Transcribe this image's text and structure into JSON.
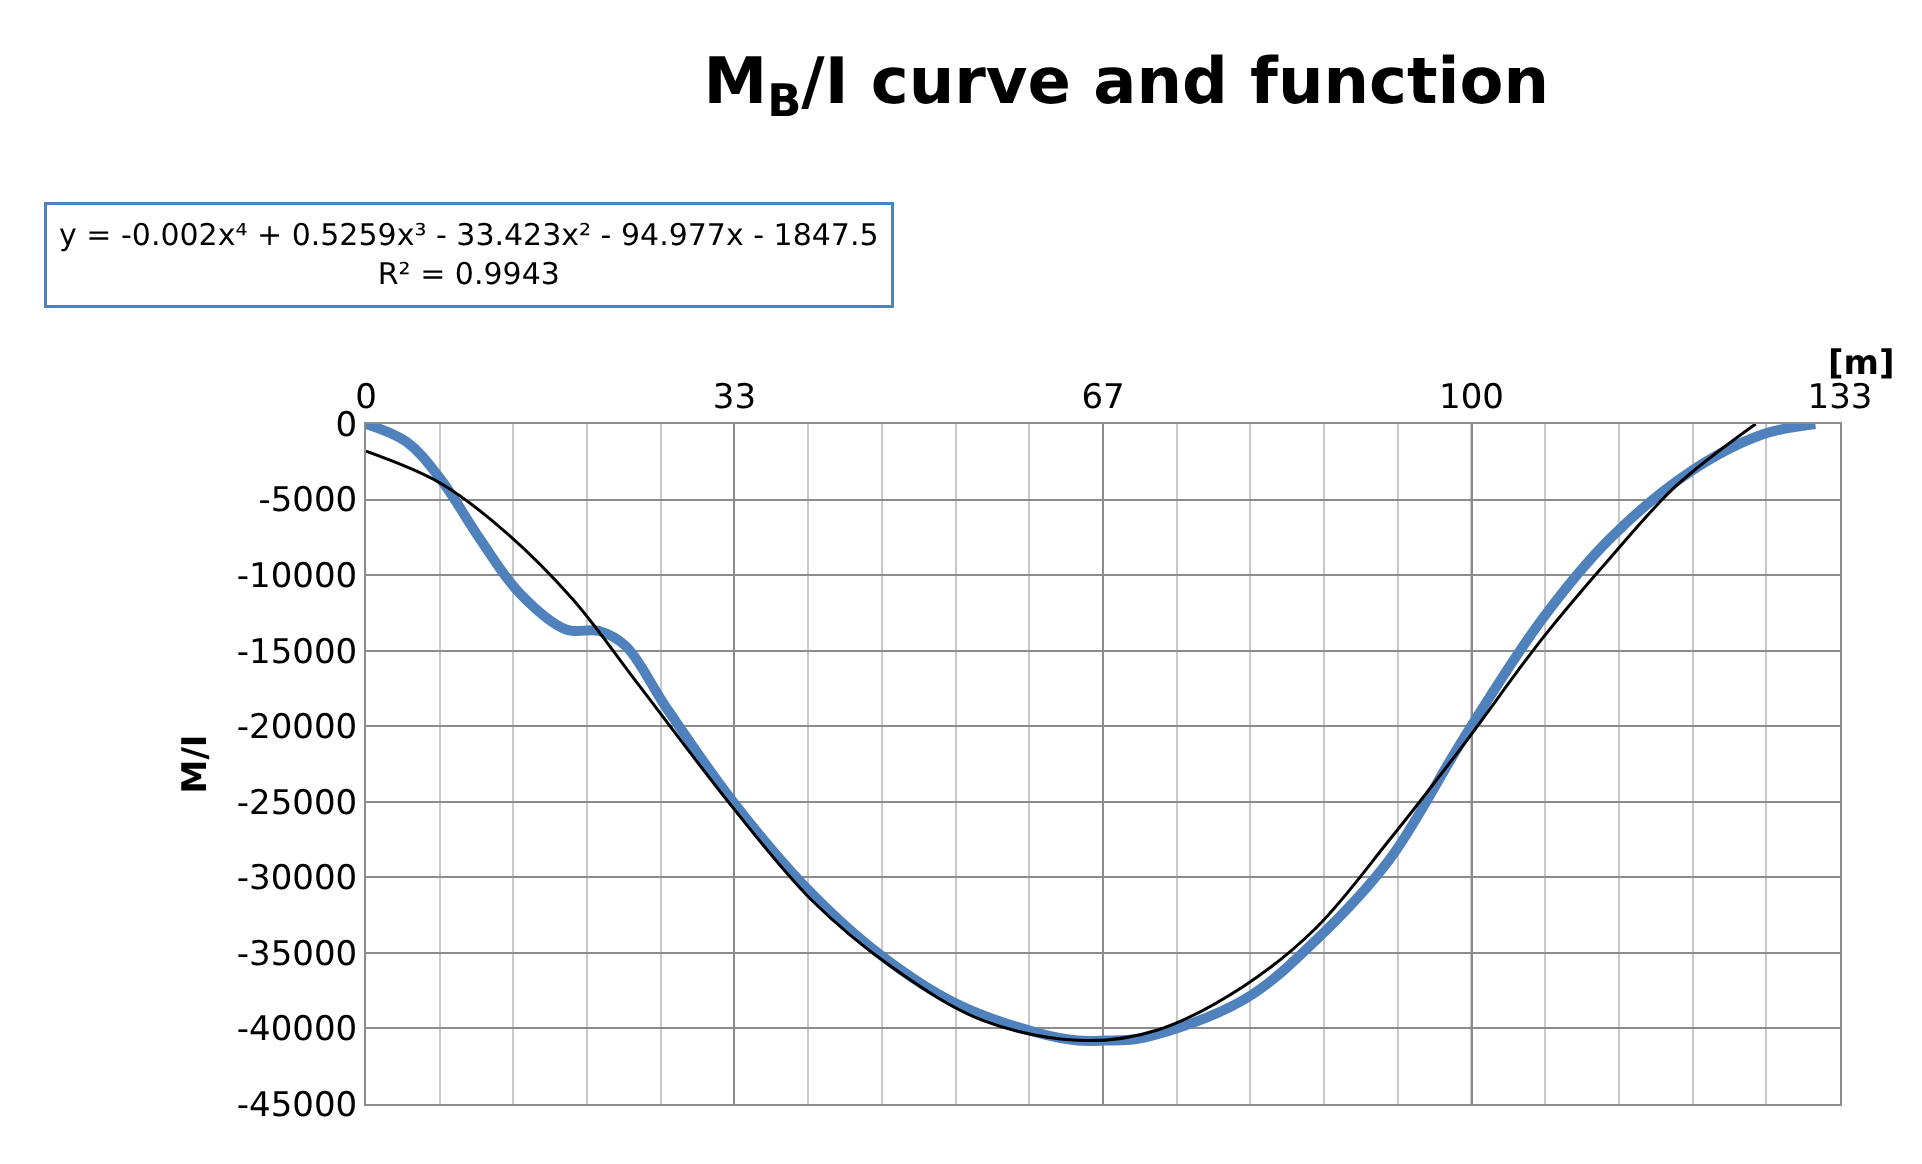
{
  "chart_data": {
    "type": "line",
    "title": "M$_{B}$/I curve and function",
    "xlabel": "[m]",
    "ylabel": "M/I",
    "annotations": [
      "y = -0.002x⁴ + 0.5259x³ - 33.423x² - 94.977x - 1847.5\nR² = 0.9943"
    ],
    "xlim": [
      0,
      133.33
    ],
    "xticks": [
      0,
      {
        "value": 33.33,
        "label": "33"
      },
      {
        "value": 66.67,
        "label": "67"
      },
      100,
      {
        "value": 133.33,
        "label": "133"
      }
    ],
    "ylim": [
      -45000,
      0
    ],
    "yticks": [
      -45000,
      -40000,
      -35000,
      -30000,
      -25000,
      -20000,
      -15000,
      -10000,
      -5000,
      0
    ],
    "grid": true,
    "marker": "none",
    "line_style": "solid",
    "series": [
      {
        "color": "#4f81bd",
        "x": [
          0,
          3.7,
          6.7,
          10.3,
          13.9,
          18.1,
          21.1,
          23.5,
          27.1,
          33.1,
          39.7,
          46.3,
          53.5,
          60.8,
          64.4,
          66.8,
          70.4,
          79.4,
          86.0,
          92.6,
          99.2,
          106.4,
          112.5,
          119.7,
          126.3,
          131.1
        ],
        "values": [
          0,
          -1200,
          -3600,
          -7600,
          -11200,
          -13600,
          -13700,
          -14700,
          -18700,
          -24900,
          -30600,
          -35000,
          -38400,
          -40300,
          -40800,
          -40800,
          -40600,
          -38100,
          -34100,
          -28800,
          -20900,
          -12900,
          -7600,
          -3200,
          -700,
          0
        ]
      },
      {
        "color": "#000000",
        "x": [
          0,
          6.7,
          12.7,
          18.7,
          24.7,
          33.1,
          40.3,
          47.5,
          55.9,
          65.0,
          71.6,
          79.4,
          86.0,
          92.6,
          99.2,
          106.4,
          112.5,
          118.5,
          125.7
        ],
        "values": [
          -1800,
          -3900,
          -7200,
          -11600,
          -17300,
          -25300,
          -31500,
          -35900,
          -39500,
          -40800,
          -40100,
          -37200,
          -33300,
          -27500,
          -21300,
          -14200,
          -8900,
          -4100,
          0
        ]
      }
    ]
  }
}
